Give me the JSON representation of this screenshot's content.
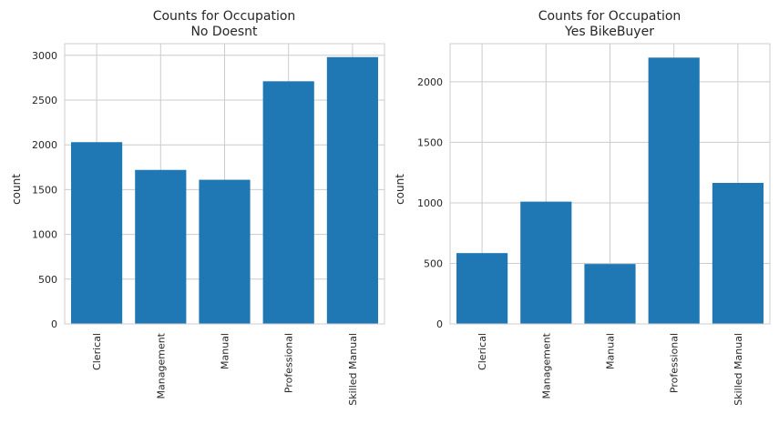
{
  "chart_data": [
    {
      "type": "bar",
      "title_line1": "Counts for Occupation",
      "title_line2": "No Doesnt",
      "ylabel": "count",
      "categories": [
        "Clerical",
        "Management",
        "Manual",
        "Professional",
        "Skilled Manual"
      ],
      "values": [
        2030,
        1720,
        1610,
        2710,
        2980
      ],
      "ylim": [
        0,
        3130
      ],
      "yticks": [
        0,
        500,
        1000,
        1500,
        2000,
        2500,
        3000
      ],
      "grid": true,
      "bar_color": "#1f77b4",
      "grid_color": "#cccccc"
    },
    {
      "type": "bar",
      "title_line1": "Counts for Occupation",
      "title_line2": "Yes BikeBuyer",
      "ylabel": "count",
      "categories": [
        "Clerical",
        "Management",
        "Manual",
        "Professional",
        "Skilled Manual"
      ],
      "values": [
        585,
        1010,
        495,
        2200,
        1165
      ],
      "ylim": [
        0,
        2315
      ],
      "yticks": [
        0,
        500,
        1000,
        1500,
        2000
      ],
      "grid": true,
      "bar_color": "#1f77b4",
      "grid_color": "#cccccc"
    }
  ]
}
